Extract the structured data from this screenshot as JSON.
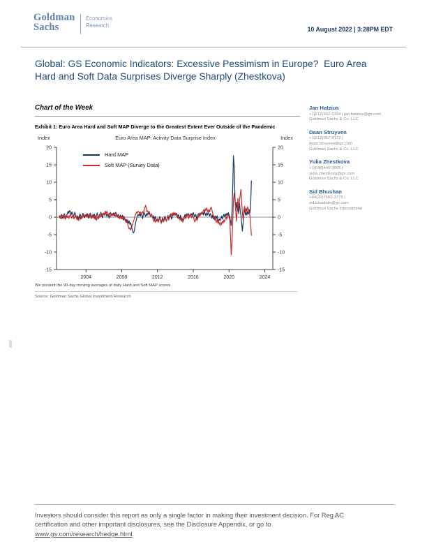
{
  "header": {
    "logo_line1": "Goldman",
    "logo_line2": "Sachs",
    "division_line1": "Economics",
    "division_line2": "Research",
    "date": "10 August 2022 | 3:28PM EDT"
  },
  "title": "Global: GS Economic Indicators: Excessive Pessimism in Europe?  Euro Area Hard and Soft Data Surprises Diverge Sharply (Zhestkova)",
  "section_heading": "Chart of the Week",
  "exhibit": {
    "caption": "Exhibit 1: Euro Area Hard and Soft MAP Diverge to the Greatest Extent Ever Outside of the Pandemic",
    "footnote": "We present the 90-day moving averages of daily Hard and Soft MAP scores.",
    "source": "Source: Goldman Sachs Global Investment Research"
  },
  "authors": [
    {
      "name": "Jan Hatzius",
      "lines": [
        "+1(212)902-0394 | jan.hatzius@gs.com",
        "Goldman Sachs & Co. LLC"
      ]
    },
    {
      "name": "Daan Struyven",
      "lines": [
        "+1(212)357-4172 |",
        "daan.struyven@gs.com",
        "Goldman Sachs & Co. LLC"
      ]
    },
    {
      "name": "Yulia Zhestkova",
      "lines": [
        "+1(646)446-3905 |",
        "yulia.zhestkova@gs.com",
        "Goldman Sachs & Co. LLC"
      ]
    },
    {
      "name": "Sid Bhushan",
      "lines": [
        "+44(20)7552-3779 |",
        "sid.bhushan@gs.com",
        "Goldman Sachs International"
      ]
    }
  ],
  "footer": {
    "lines": [
      "Investors should consider this report as only a single factor in making their investment decision. For Reg AC",
      "certification and other important disclosures, see the Disclosure Appendix, or go to"
    ],
    "link": "www.gs.com/research/hedge.html",
    "period": "."
  },
  "chart_data": {
    "type": "line",
    "title": "Euro Area MAP: Activity Data Surprise Index",
    "ylabel_left": "Index",
    "ylabel_right": "Index",
    "ylim": [
      -15,
      20
    ],
    "yticks": [
      20,
      15,
      10,
      5,
      0,
      -5,
      -10,
      -15
    ],
    "xlim": [
      2000.7,
      2024.9
    ],
    "xticks": [
      2004,
      2008,
      2012,
      2016,
      2020,
      2024
    ],
    "x_start": 2001.0,
    "x_step_years": 0.0833333,
    "zero_line": true,
    "legend_position": "top-left",
    "axis_color": "#404040",
    "zero_line_color": "#8c8c8c",
    "series": [
      {
        "name": "Hard MAP",
        "color": "#17375e",
        "values": [
          0.5,
          0.2,
          -0.3,
          0.8,
          0.3,
          -0.4,
          0.6,
          1.0,
          0.3,
          -0.3,
          0.5,
          1.1,
          1.7,
          1.1,
          1.9,
          1.4,
          0.7,
          1.5,
          0.9,
          0.2,
          0.8,
          1.4,
          0.5,
          -0.2,
          -0.5,
          0.4,
          -0.8,
          0.3,
          0.9,
          0.2,
          -0.4,
          0.6,
          1.1,
          0.3,
          -0.2,
          0.5,
          0.8,
          0.2,
          1.0,
          0.4,
          -0.3,
          0.6,
          1.1,
          0.4,
          -0.2,
          0.7,
          0.3,
          0.9,
          0.4,
          -0.6,
          0.5,
          1.2,
          0.2,
          -0.5,
          0.8,
          0.3,
          1.4,
          0.6,
          -0.2,
          0.9,
          1.2,
          0.5,
          1.7,
          0.8,
          0.2,
          1.0,
          0.4,
          -0.3,
          0.8,
          1.3,
          0.5,
          1.0,
          0.6,
          1.2,
          0.3,
          0.9,
          1.4,
          0.7,
          0.1,
          0.8,
          0.4,
          -0.2,
          0.6,
          0.2,
          -0.4,
          0.5,
          -0.8,
          0.2,
          -0.5,
          -1.2,
          -0.6,
          -1.5,
          -0.8,
          -1.8,
          -1.1,
          -2.1,
          -1.6,
          -2.6,
          -3.6,
          -4.3,
          -4.5,
          -3.7,
          -2.4,
          -1.2,
          -0.4,
          0.3,
          0.8,
          0.4,
          1.0,
          0.3,
          1.2,
          0.6,
          -0.4,
          0.8,
          1.4,
          0.7,
          0.2,
          1.0,
          0.5,
          1.2,
          0.8,
          1.4,
          0.6,
          0.1,
          0.9,
          0.3,
          -0.5,
          0.4,
          -0.8,
          0.2,
          -0.6,
          -1.0,
          -0.4,
          -1.2,
          -0.6,
          0.2,
          -0.8,
          -1.4,
          -0.7,
          -0.2,
          -1.0,
          -0.5,
          0.3,
          -0.6,
          -1.0,
          -0.3,
          0.5,
          -0.5,
          0.2,
          0.8,
          0.1,
          -0.6,
          0.4,
          1.0,
          0.5,
          1.1,
          0.6,
          1.1,
          0.4,
          -0.2,
          0.7,
          0.2,
          -0.5,
          0.5,
          -0.9,
          -0.3,
          -1.1,
          -0.5,
          0.2,
          0.8,
          0.1,
          0.9,
          0.4,
          1.1,
          0.6,
          0.1,
          0.8,
          0.3,
          1.0,
          0.5,
          1.3,
          0.6,
          0.1,
          0.8,
          0.2,
          -0.4,
          0.5,
          1.0,
          0.4,
          1.2,
          0.7,
          1.4,
          0.8,
          1.4,
          0.6,
          1.7,
          1.0,
          0.4,
          1.2,
          0.6,
          1.4,
          0.9,
          0.3,
          1.0,
          0.5,
          -0.3,
          0.6,
          -0.5,
          0.2,
          -0.8,
          0.3,
          -0.4,
          0.4,
          -0.6,
          -1.1,
          -0.5,
          -1.0,
          -0.4,
          0.3,
          -0.6,
          0.2,
          0.8,
          0.1,
          0.9,
          0.4,
          1.1,
          0.6,
          1.3,
          0.7,
          0.1,
          -1.2,
          -2.4,
          1.5,
          9.0,
          17.6,
          14.4,
          5.5,
          2.5,
          4.3,
          1.5,
          3.2,
          1.0,
          4.2,
          2.0,
          0.5,
          -1.8,
          -4.0,
          -1.5,
          1.2,
          2.4,
          0.6,
          1.4,
          0.6,
          1.6,
          0.9,
          2.2,
          1.2,
          3.0,
          10.5
        ]
      },
      {
        "name": "Soft MAP (Survey Data)",
        "color": "#cc2a2a",
        "values": [
          0.2,
          -0.3,
          0.4,
          -0.5,
          0.1,
          0.5,
          -0.2,
          0.3,
          -0.6,
          0.2,
          0.5,
          -0.1,
          0.4,
          -0.4,
          0.3,
          0.8,
          0.2,
          -0.3,
          0.5,
          0.1,
          -0.5,
          0.3,
          0.7,
          0.2,
          -0.8,
          -0.3,
          -1.0,
          -0.4,
          0.2,
          -0.6,
          0.3,
          -0.2,
          0.4,
          0.8,
          0.3,
          0.6,
          0.2,
          0.9,
          0.4,
          -0.2,
          0.5,
          1.0,
          0.3,
          -0.4,
          0.2,
          0.6,
          -0.3,
          0.4,
          -0.6,
          0.2,
          -0.9,
          -0.3,
          0.4,
          -0.5,
          0.2,
          0.7,
          0.1,
          0.5,
          1.0,
          0.4,
          1.2,
          0.6,
          1.5,
          0.9,
          1.7,
          1.0,
          0.5,
          1.2,
          0.6,
          0.2,
          0.8,
          0.4,
          1.0,
          0.5,
          1.2,
          0.7,
          0.2,
          0.8,
          0.3,
          -0.2,
          0.5,
          -0.5,
          0.1,
          -0.4,
          0.3,
          -0.5,
          0.2,
          -0.8,
          -0.3,
          -1.0,
          -1.5,
          -0.8,
          -2.0,
          -2.8,
          -3.4,
          -3.0,
          -3.7,
          -3.1,
          -2.4,
          -1.7,
          -1.0,
          -0.3,
          0.5,
          1.0,
          1.5,
          1.2,
          1.7,
          1.4,
          1.0,
          1.5,
          0.8,
          1.2,
          1.6,
          1.0,
          2.0,
          2.7,
          3.4,
          2.5,
          1.5,
          1.8,
          1.2,
          1.6,
          0.8,
          0.3,
          0.9,
          0.2,
          -0.5,
          -1.2,
          -0.6,
          -1.5,
          -0.8,
          -1.2,
          -0.5,
          -1.5,
          -0.8,
          -0.2,
          -1.0,
          -1.8,
          -1.2,
          -0.6,
          -1.4,
          -0.8,
          -0.2,
          -0.8,
          -1.2,
          -0.5,
          0.2,
          -0.8,
          -0.2,
          0.5,
          1.0,
          0.4,
          1.2,
          0.6,
          1.4,
          0.8,
          1.2,
          0.6,
          1.0,
          0.3,
          -0.4,
          0.2,
          -0.8,
          -0.3,
          -1.2,
          -0.6,
          -1.4,
          -0.8,
          -0.3,
          0.4,
          -0.5,
          0.3,
          0.8,
          0.2,
          -0.4,
          0.5,
          1.0,
          0.4,
          -0.2,
          0.6,
          0.2,
          -0.6,
          -1.4,
          -0.8,
          -0.2,
          -1.0,
          -0.4,
          0.3,
          0.8,
          0.3,
          1.0,
          1.4,
          0.8,
          1.5,
          2.1,
          1.4,
          2.4,
          1.8,
          2.7,
          2.0,
          1.2,
          2.2,
          1.5,
          2.4,
          2.9,
          2.1,
          1.2,
          0.5,
          -0.5,
          0.3,
          -0.8,
          -1.5,
          -0.6,
          -1.8,
          -1.0,
          -2.1,
          -1.5,
          -2.4,
          -1.8,
          -1.2,
          -1.8,
          -0.8,
          -1.4,
          -0.5,
          0.2,
          -0.6,
          0.3,
          0.7,
          0.2,
          -0.8,
          -5.5,
          -10.8,
          -7.0,
          -1.5,
          4.8,
          6.8,
          4.5,
          2.0,
          -1.2,
          2.2,
          5.4,
          2.2,
          4.6,
          6.2,
          7.9,
          4.2,
          1.2,
          -0.8,
          2.2,
          3.1,
          1.2,
          2.6,
          1.6,
          3.0,
          2.2,
          1.2,
          0.6,
          -1.8,
          -5.3
        ]
      }
    ]
  }
}
